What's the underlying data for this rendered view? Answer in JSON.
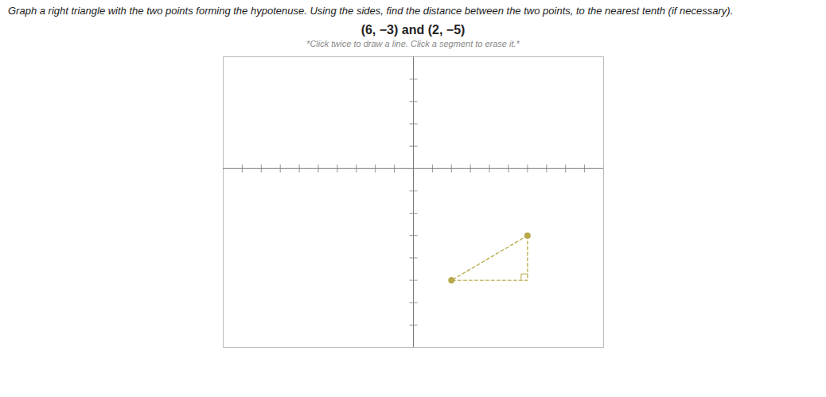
{
  "chart_data": {
    "type": "line",
    "title": "Graph a right triangle with the two points forming the hypotenuse. Using the sides, find the distance between the two points, to the nearest tenth (if necessary).",
    "subtitle": "(6, −3) and (2, −5)",
    "annotations": [
      "*Click twice to draw a line. Click a segment to erase it.*"
    ],
    "series": [
      {
        "type": "line",
        "line_style": "dashed",
        "color": "#b8a84a",
        "x": [
          6,
          2,
          6,
          6
        ],
        "values": [
          -3,
          -5,
          -5,
          -3
        ]
      },
      {
        "type": "scatter",
        "marker": "circle",
        "color": "#b8a84a",
        "x": [
          6,
          2
        ],
        "values": [
          -3,
          -5
        ]
      }
    ],
    "right_angle": [
      6,
      -5
    ],
    "xlim": [
      -10,
      10
    ],
    "ylim": [
      -8,
      5
    ],
    "xticks": [
      -9,
      -8,
      -7,
      -6,
      -5,
      -4,
      -3,
      -2,
      -1,
      1,
      2,
      3,
      4,
      5,
      6,
      7,
      8,
      9
    ],
    "yticks": [
      -7,
      -6,
      -5,
      -4,
      -3,
      -2,
      -1,
      1,
      2,
      3,
      4
    ],
    "tick_labels": false,
    "grid": false
  }
}
